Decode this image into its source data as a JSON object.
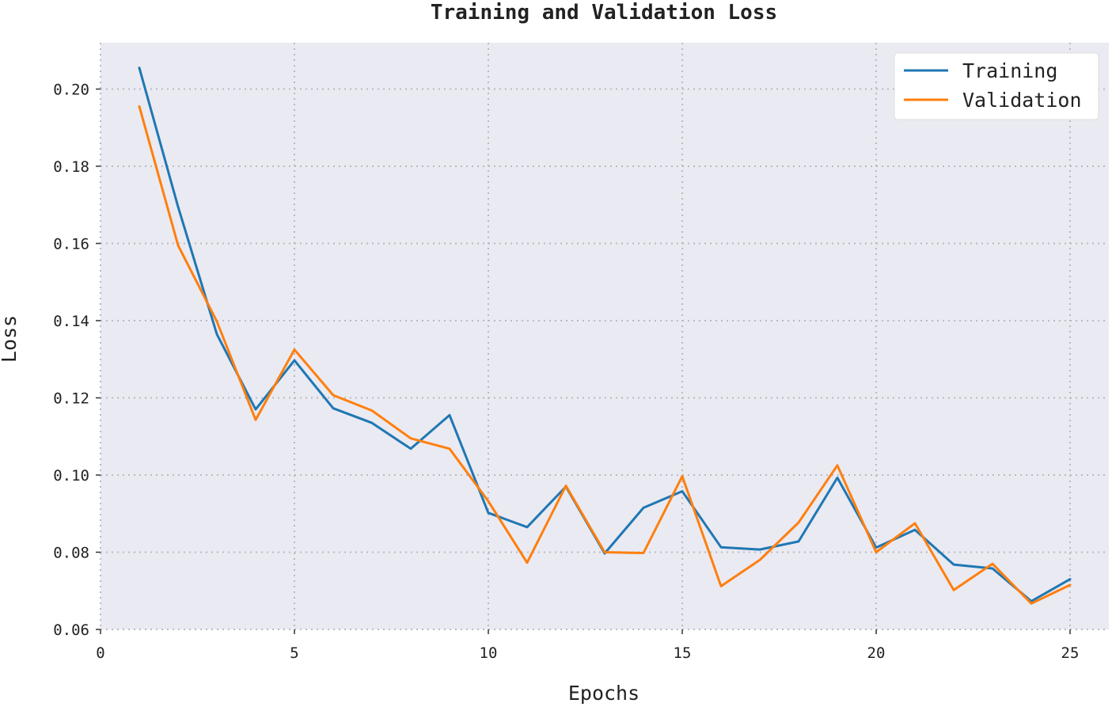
{
  "chart_data": {
    "type": "line",
    "title": "Training and Validation Loss",
    "xlabel": "Epochs",
    "ylabel": "Loss",
    "xlim": [
      0,
      26
    ],
    "ylim": [
      0.06,
      0.212
    ],
    "xticks": [
      0,
      5,
      10,
      15,
      20,
      25
    ],
    "xtick_labels": [
      "0",
      "5",
      "10",
      "15",
      "20",
      "25"
    ],
    "yticks": [
      0.06,
      0.08,
      0.1,
      0.12,
      0.14,
      0.16,
      0.18,
      0.2
    ],
    "ytick_labels": [
      "0.06",
      "0.08",
      "0.10",
      "0.12",
      "0.14",
      "0.16",
      "0.18",
      "0.20"
    ],
    "grid": true,
    "legend_position": "top-right",
    "background": "#eaeaf2",
    "x": [
      1,
      2,
      3,
      4,
      5,
      6,
      7,
      8,
      9,
      10,
      11,
      12,
      13,
      14,
      15,
      16,
      17,
      18,
      19,
      20,
      21,
      22,
      23,
      24,
      25
    ],
    "series": [
      {
        "name": "Training",
        "color": "#1f77b4",
        "values": [
          0.2055,
          0.1695,
          0.1365,
          0.117,
          0.1297,
          0.1173,
          0.1135,
          0.1068,
          0.1155,
          0.0902,
          0.0865,
          0.097,
          0.0797,
          0.0915,
          0.0958,
          0.0813,
          0.0807,
          0.0828,
          0.0993,
          0.0812,
          0.0858,
          0.0768,
          0.0758,
          0.0673,
          0.073
        ]
      },
      {
        "name": "Validation",
        "color": "#ff7f0e",
        "values": [
          0.1955,
          0.1595,
          0.1398,
          0.1143,
          0.1325,
          0.1207,
          0.1167,
          0.1095,
          0.1068,
          0.0932,
          0.0773,
          0.0972,
          0.08,
          0.0798,
          0.0997,
          0.0712,
          0.078,
          0.0877,
          0.1025,
          0.08,
          0.0875,
          0.0702,
          0.077,
          0.0667,
          0.0715
        ]
      }
    ]
  }
}
